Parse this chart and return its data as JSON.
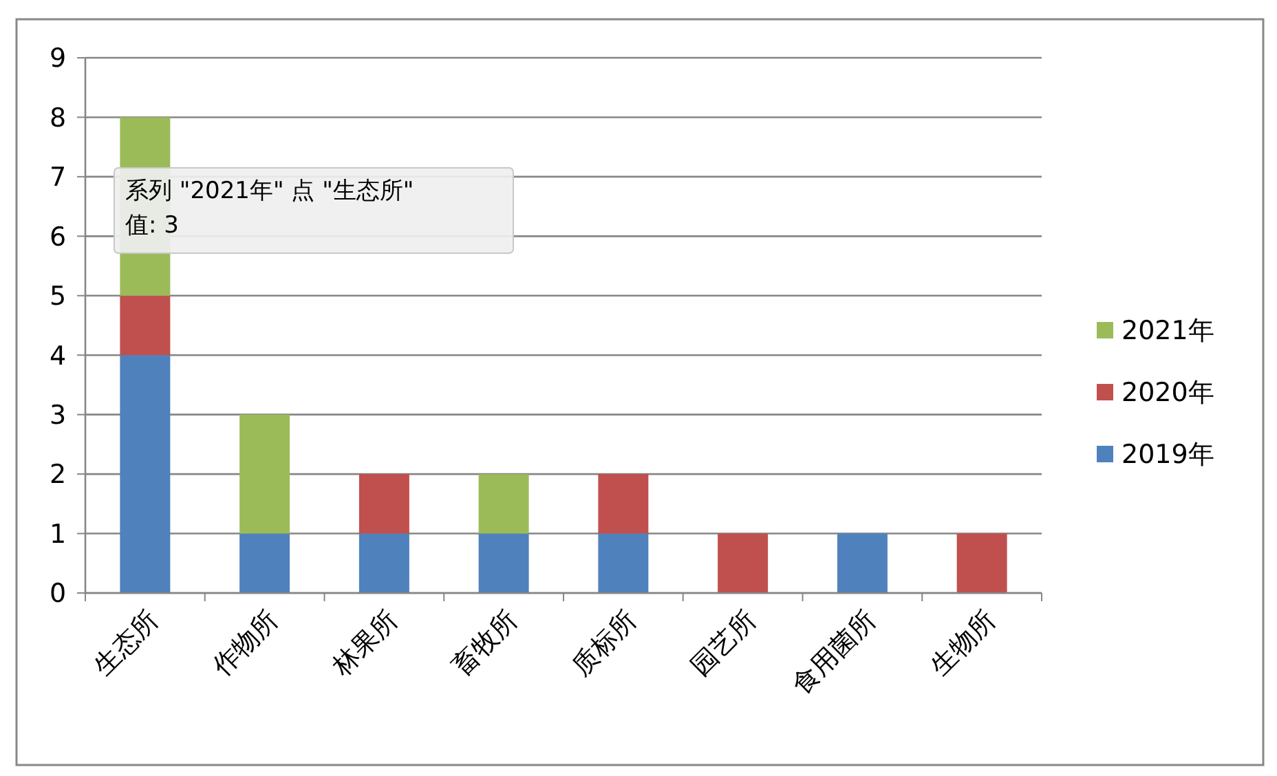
{
  "chart_data": {
    "type": "bar",
    "stacked": true,
    "categories": [
      "生态所",
      "作物所",
      "林果所",
      "畜牧所",
      "质标所",
      "园艺所",
      "食用菌所",
      "生物所"
    ],
    "series": [
      {
        "name": "2019年",
        "color": "#4f81bd",
        "values": [
          4,
          1,
          1,
          1,
          1,
          0,
          1,
          0
        ]
      },
      {
        "name": "2020年",
        "color": "#c0504d",
        "values": [
          1,
          0,
          1,
          0,
          1,
          1,
          0,
          1
        ]
      },
      {
        "name": "2021年",
        "color": "#9bbb59",
        "values": [
          3,
          2,
          0,
          1,
          0,
          0,
          0,
          0
        ]
      }
    ],
    "ylim": [
      0,
      9
    ],
    "yticks": [
      0,
      1,
      2,
      3,
      4,
      5,
      6,
      7,
      8,
      9
    ],
    "grid": "y",
    "legend": "right",
    "annotations": [
      "系列 \"2021年\" 点 \"生态所\"\n值: 3"
    ]
  }
}
